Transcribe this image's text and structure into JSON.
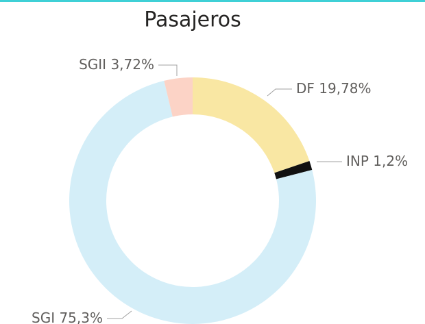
{
  "chart_data": {
    "type": "donut",
    "title": "Pasajeros",
    "categories": [
      "DF",
      "INP",
      "SGI",
      "SGII"
    ],
    "values": [
      19.78,
      1.2,
      75.3,
      3.72
    ],
    "value_labels": [
      "19,78%",
      "1,2%",
      "75,3%",
      "3,72%"
    ],
    "colors": [
      "#f9e7a3",
      "#111111",
      "#d4eef8",
      "#fcd3c6"
    ]
  }
}
